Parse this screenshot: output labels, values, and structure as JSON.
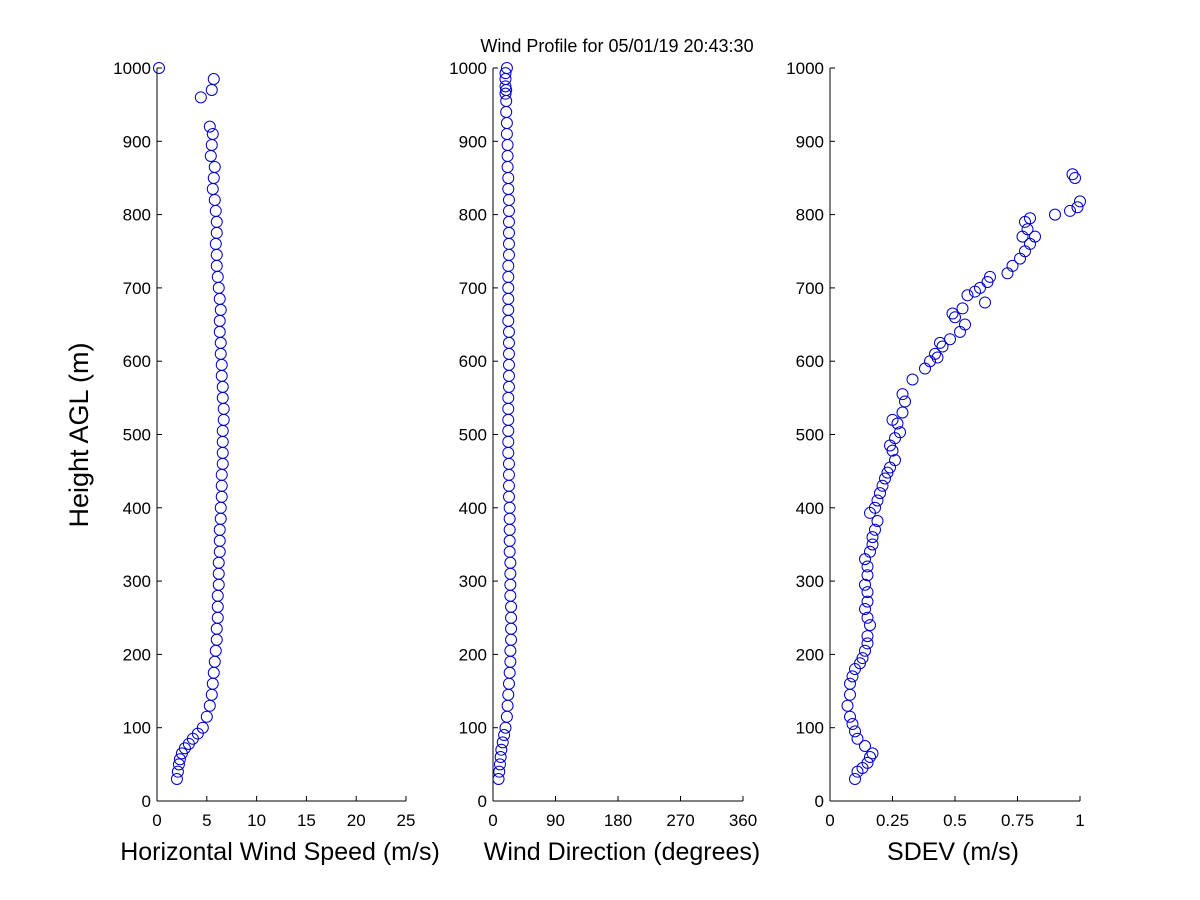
{
  "figure": {
    "title": "Wind Profile for  05/01/19 20:43:30",
    "ylabel": "Height AGL (m)"
  },
  "chart_data": [
    {
      "type": "scatter",
      "id": "speed",
      "title": "Wind Profile for  05/01/19 20:43:30",
      "xlabel": "Horizontal Wind Speed (m/s)",
      "ylabel": "Height AGL (m)",
      "xlim": [
        0,
        25
      ],
      "ylim": [
        0,
        1000
      ],
      "xticks": [
        0,
        5,
        10,
        15,
        20,
        25
      ],
      "xtick_labels": [
        "0",
        "5",
        "10",
        "15",
        "20",
        "25"
      ],
      "yticks": [
        0,
        100,
        200,
        300,
        400,
        500,
        600,
        700,
        800,
        900,
        1000
      ],
      "ytick_labels": [
        "0",
        "100",
        "200",
        "300",
        "400",
        "500",
        "600",
        "700",
        "800",
        "900",
        "1000"
      ],
      "marker_color": "#0000c8",
      "grid": false,
      "x": [
        2.0,
        2.1,
        2.2,
        2.3,
        2.5,
        2.8,
        3.2,
        3.6,
        4.1,
        4.6,
        5.0,
        5.3,
        5.5,
        5.6,
        5.7,
        5.8,
        5.9,
        6.0,
        6.0,
        6.1,
        6.1,
        6.1,
        6.2,
        6.2,
        6.2,
        6.3,
        6.3,
        6.3,
        6.4,
        6.4,
        6.5,
        6.5,
        6.5,
        6.6,
        6.6,
        6.6,
        6.6,
        6.7,
        6.7,
        6.6,
        6.6,
        6.5,
        6.5,
        6.4,
        6.4,
        6.3,
        6.3,
        6.4,
        6.3,
        6.2,
        6.1,
        6.0,
        6.0,
        5.9,
        6.0,
        6.0,
        5.9,
        5.8,
        5.6,
        5.7,
        5.8,
        5.4,
        5.5,
        5.6,
        5.3,
        4.4,
        5.5,
        5.7,
        0.2
      ],
      "y": [
        30,
        40,
        50,
        57,
        65,
        72,
        78,
        85,
        92,
        100,
        115,
        130,
        145,
        160,
        175,
        190,
        205,
        220,
        235,
        250,
        265,
        280,
        295,
        310,
        325,
        340,
        355,
        370,
        385,
        400,
        415,
        430,
        445,
        460,
        475,
        490,
        505,
        520,
        535,
        550,
        565,
        580,
        595,
        610,
        625,
        640,
        655,
        670,
        685,
        700,
        715,
        730,
        745,
        760,
        775,
        790,
        805,
        820,
        835,
        850,
        865,
        880,
        895,
        910,
        920,
        960,
        970,
        985,
        1000
      ]
    },
    {
      "type": "scatter",
      "id": "direction",
      "xlabel": "Wind Direction (degrees)",
      "ylabel": "",
      "xlim": [
        0,
        360
      ],
      "ylim": [
        0,
        1000
      ],
      "xticks": [
        0,
        90,
        180,
        270,
        360
      ],
      "xtick_labels": [
        "0",
        "90",
        "180",
        "270",
        "360"
      ],
      "yticks": [
        0,
        100,
        200,
        300,
        400,
        500,
        600,
        700,
        800,
        900,
        1000
      ],
      "ytick_labels": [
        "0",
        "100",
        "200",
        "300",
        "400",
        "500",
        "600",
        "700",
        "800",
        "900",
        "1000"
      ],
      "marker_color": "#0000c8",
      "grid": false,
      "x": [
        8,
        9,
        10,
        11,
        12,
        14,
        16,
        18,
        20,
        21,
        22,
        23,
        24,
        25,
        25,
        26,
        26,
        26,
        26,
        25,
        25,
        25,
        25,
        24,
        24,
        24,
        24,
        24,
        23,
        23,
        23,
        23,
        22,
        22,
        22,
        22,
        22,
        22,
        23,
        23,
        23,
        23,
        23,
        23,
        22,
        22,
        22,
        22,
        22,
        22,
        23,
        23,
        23,
        23,
        23,
        23,
        22,
        22,
        21,
        21,
        21,
        20,
        20,
        19,
        19,
        18,
        18,
        18,
        18,
        20,
        19
      ],
      "y": [
        30,
        40,
        50,
        60,
        70,
        80,
        90,
        100,
        115,
        130,
        145,
        160,
        175,
        190,
        205,
        220,
        235,
        250,
        265,
        280,
        295,
        310,
        325,
        340,
        355,
        370,
        385,
        400,
        415,
        430,
        445,
        460,
        475,
        490,
        505,
        520,
        535,
        550,
        565,
        580,
        595,
        610,
        625,
        640,
        655,
        670,
        685,
        700,
        715,
        730,
        745,
        760,
        775,
        790,
        805,
        820,
        835,
        850,
        865,
        880,
        895,
        910,
        925,
        940,
        955,
        965,
        975,
        985,
        993,
        1000,
        970
      ]
    },
    {
      "type": "scatter",
      "id": "sdev",
      "xlabel": "SDEV  (m/s)",
      "ylabel": "",
      "xlim": [
        0,
        1
      ],
      "ylim": [
        0,
        1000
      ],
      "xticks": [
        0,
        0.25,
        0.5,
        0.75,
        1
      ],
      "xtick_labels": [
        "0",
        "0.25",
        "0.5",
        "0.75",
        "1"
      ],
      "yticks": [
        0,
        100,
        200,
        300,
        400,
        500,
        600,
        700,
        800,
        900,
        1000
      ],
      "ytick_labels": [
        "0",
        "100",
        "200",
        "300",
        "400",
        "500",
        "600",
        "700",
        "800",
        "900",
        "1000"
      ],
      "marker_color": "#0000c8",
      "grid": false,
      "x": [
        0.1,
        0.11,
        0.13,
        0.15,
        0.16,
        0.17,
        0.14,
        0.11,
        0.1,
        0.09,
        0.08,
        0.07,
        0.08,
        0.08,
        0.09,
        0.1,
        0.12,
        0.13,
        0.14,
        0.15,
        0.15,
        0.16,
        0.15,
        0.14,
        0.15,
        0.15,
        0.14,
        0.15,
        0.15,
        0.14,
        0.16,
        0.17,
        0.17,
        0.18,
        0.19,
        0.16,
        0.18,
        0.19,
        0.2,
        0.21,
        0.22,
        0.23,
        0.24,
        0.26,
        0.25,
        0.24,
        0.26,
        0.28,
        0.27,
        0.25,
        0.29,
        0.3,
        0.29,
        0.33,
        0.38,
        0.4,
        0.43,
        0.42,
        0.45,
        0.44,
        0.48,
        0.52,
        0.54,
        0.5,
        0.49,
        0.53,
        0.62,
        0.55,
        0.58,
        0.6,
        0.63,
        0.64,
        0.71,
        0.73,
        0.76,
        0.78,
        0.8,
        0.77,
        0.82,
        0.79,
        0.78,
        0.8,
        0.9,
        0.96,
        0.99,
        1.0,
        0.98,
        0.97
      ],
      "y": [
        30,
        40,
        45,
        52,
        60,
        65,
        75,
        85,
        95,
        105,
        115,
        130,
        145,
        160,
        170,
        180,
        188,
        195,
        205,
        215,
        225,
        240,
        250,
        262,
        272,
        285,
        295,
        308,
        320,
        330,
        340,
        350,
        360,
        370,
        382,
        393,
        400,
        410,
        420,
        430,
        440,
        448,
        455,
        465,
        478,
        485,
        495,
        503,
        515,
        520,
        530,
        545,
        555,
        575,
        590,
        600,
        605,
        610,
        620,
        625,
        630,
        640,
        650,
        660,
        665,
        672,
        680,
        690,
        695,
        700,
        708,
        715,
        720,
        730,
        740,
        750,
        760,
        770,
        770,
        780,
        790,
        795,
        800,
        805,
        810,
        818,
        850,
        855
      ]
    }
  ]
}
